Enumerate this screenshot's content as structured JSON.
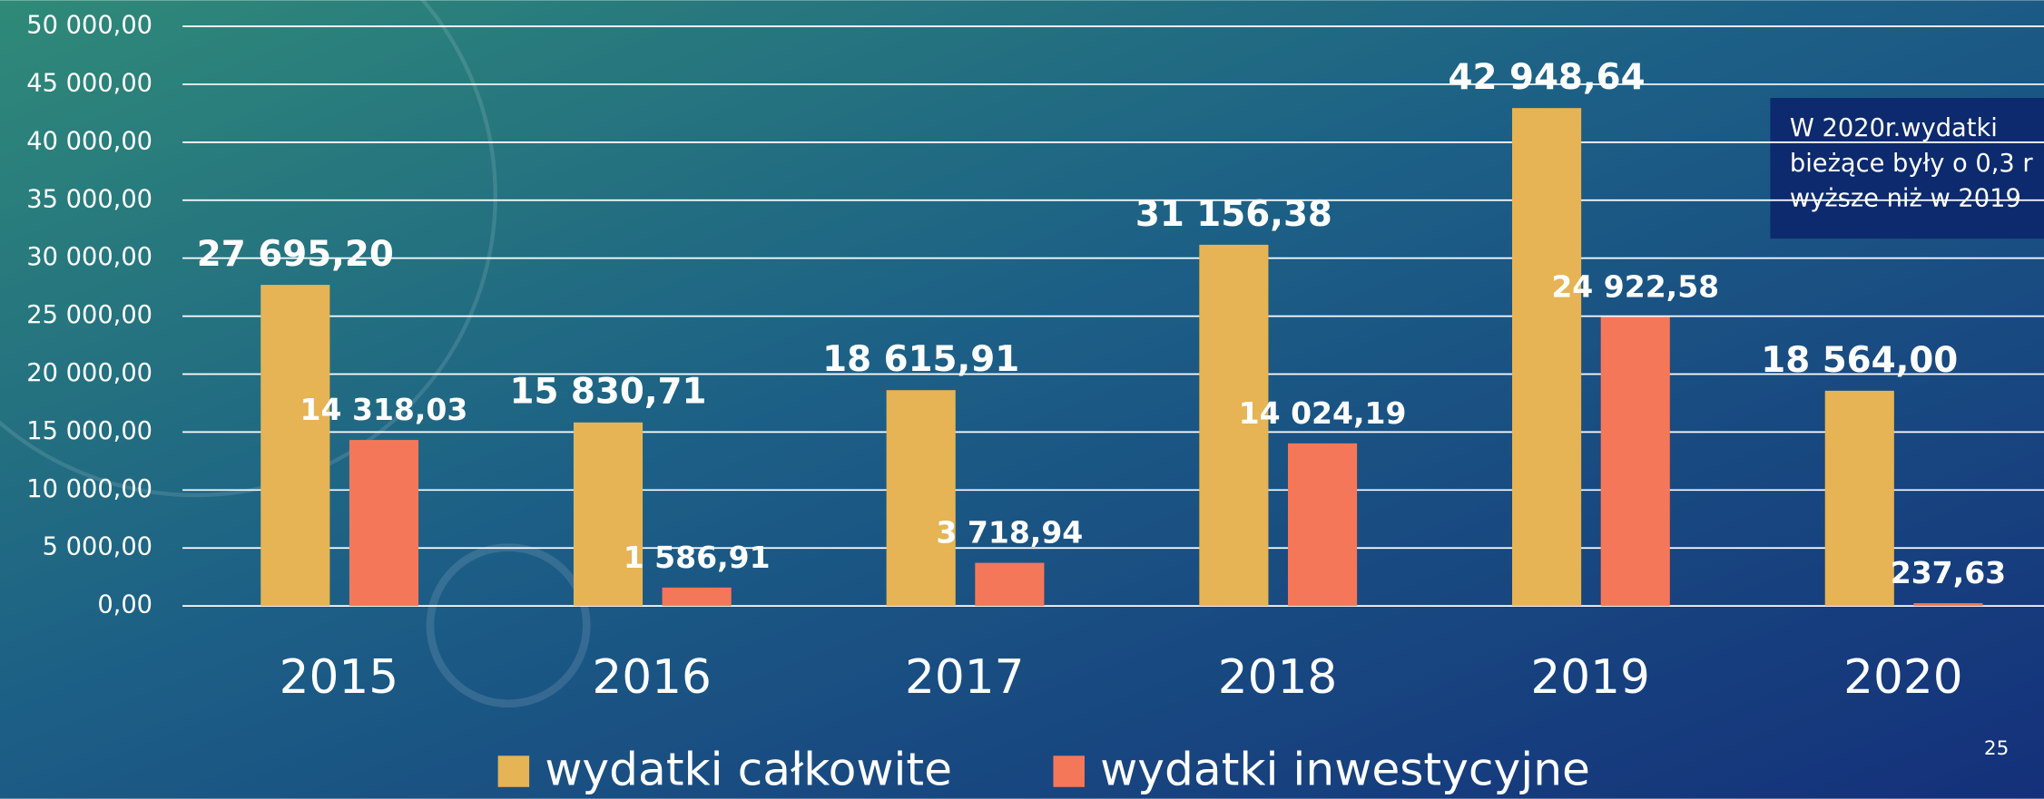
{
  "chart_data": {
    "type": "bar",
    "categories": [
      "2015",
      "2016",
      "2017",
      "2018",
      "2019",
      "2020"
    ],
    "series": [
      {
        "name": "wydatki całkowite",
        "color": "#e6b455",
        "values": [
          27695.2,
          15830.71,
          18615.91,
          31156.38,
          42948.64,
          18564.0
        ],
        "value_labels": [
          "27 695,20",
          "15 830,71",
          "18 615,91",
          "31 156,38",
          "42 948,64",
          "18 564,00"
        ]
      },
      {
        "name": "wydatki inwestycyjne",
        "color": "#f5775a",
        "values": [
          14318.03,
          1586.91,
          3718.94,
          14024.19,
          24922.58,
          237.63
        ],
        "value_labels": [
          "14 318,03",
          "1 586,91",
          "3 718,94",
          "14 024,19",
          "24 922,58",
          "237,63"
        ]
      }
    ],
    "ylim": [
      0,
      50000
    ],
    "yticks": [
      {
        "value": 0,
        "label": "0,00"
      },
      {
        "value": 5000,
        "label": "5 000,00"
      },
      {
        "value": 10000,
        "label": "10 000,00"
      },
      {
        "value": 15000,
        "label": "15 000,00"
      },
      {
        "value": 20000,
        "label": "20 000,00"
      },
      {
        "value": 25000,
        "label": "25 000,00"
      },
      {
        "value": 30000,
        "label": "30 000,00"
      },
      {
        "value": 35000,
        "label": "35 000,00"
      },
      {
        "value": 40000,
        "label": "40 000,00"
      },
      {
        "value": 45000,
        "label": "45 000,00"
      },
      {
        "value": 50000,
        "label": "50 000,00"
      }
    ],
    "grid": true,
    "annotation": [
      "W 2020r.wydatki",
      "bieżące były o 0,3 r",
      "wyższe niż w  2019"
    ],
    "page_number": "25"
  }
}
